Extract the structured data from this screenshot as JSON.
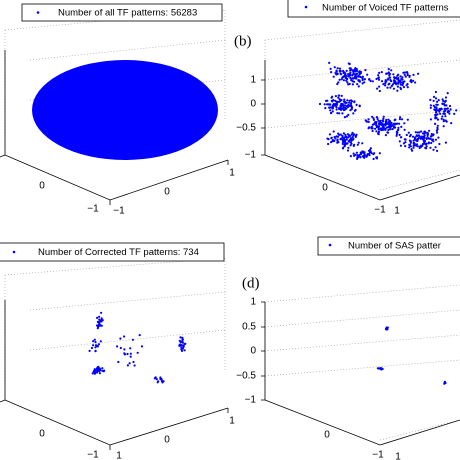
{
  "panels": [
    {
      "legend": "Number of  all TF patterns: 56283",
      "ticks": [
        "0",
        "0",
        "1",
        "−1",
        "−1"
      ]
    },
    {
      "label": "(b)",
      "legend": "Number of   Voiced TF patterns",
      "ticks": [
        "1",
        "0",
        "−0.5",
        "−1",
        "0",
        "−1",
        "1"
      ]
    },
    {
      "legend": "Number of   Corrected TF patterns: 734",
      "ticks": [
        "0",
        "0",
        "1",
        "−1",
        "1"
      ]
    },
    {
      "label": "(d)",
      "legend": "Number of   SAS  patter",
      "ticks": [
        "1",
        "0.5",
        "0",
        "−0.5",
        "−1",
        "0",
        "−1",
        "1"
      ]
    }
  ]
}
